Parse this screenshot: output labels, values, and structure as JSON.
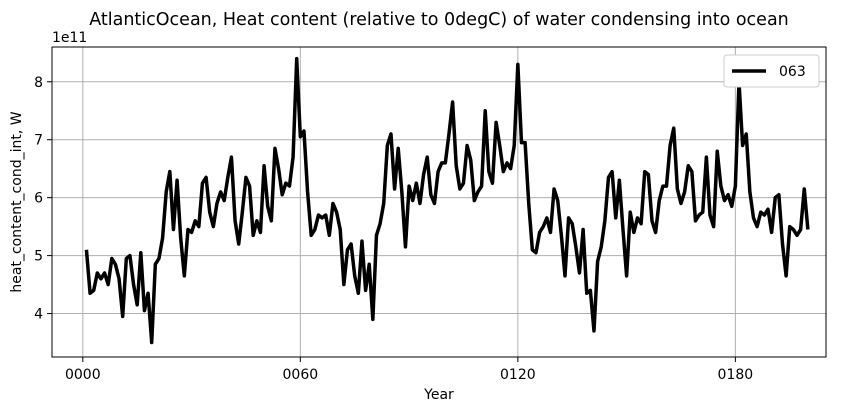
{
  "chart_data": {
    "type": "line",
    "title": "AtlanticOcean, Heat content (relative to 0degC) of water condensing into ocean",
    "xlabel": "Year",
    "ylabel": "heat_content_cond_int, W",
    "y_offset_label": "1e11",
    "x_tick_labels": [
      "0000",
      "0060",
      "0120",
      "0180"
    ],
    "x_ticks": [
      0,
      60,
      120,
      180
    ],
    "y_ticks": [
      4,
      5,
      6,
      7,
      8
    ],
    "y_tick_labels": [
      "4",
      "5",
      "6",
      "7",
      "8"
    ],
    "xlim": [
      -8.5,
      205
    ],
    "ylim": [
      3.25,
      8.6
    ],
    "grid": true,
    "legend_position": "top-right",
    "series": [
      {
        "name": "063",
        "color": "#000000",
        "x": [
          1,
          2,
          3,
          4,
          5,
          6,
          7,
          8,
          9,
          10,
          11,
          12,
          13,
          14,
          15,
          16,
          17,
          18,
          19,
          20,
          21,
          22,
          23,
          24,
          25,
          26,
          27,
          28,
          29,
          30,
          31,
          32,
          33,
          34,
          35,
          36,
          37,
          38,
          39,
          40,
          41,
          42,
          43,
          44,
          45,
          46,
          47,
          48,
          49,
          50,
          51,
          52,
          53,
          54,
          55,
          56,
          57,
          58,
          59,
          60,
          61,
          62,
          63,
          64,
          65,
          66,
          67,
          68,
          69,
          70,
          71,
          72,
          73,
          74,
          75,
          76,
          77,
          78,
          79,
          80,
          81,
          82,
          83,
          84,
          85,
          86,
          87,
          88,
          89,
          90,
          91,
          92,
          93,
          94,
          95,
          96,
          97,
          98,
          99,
          100,
          101,
          102,
          103,
          104,
          105,
          106,
          107,
          108,
          109,
          110,
          111,
          112,
          113,
          114,
          115,
          116,
          117,
          118,
          119,
          120,
          121,
          122,
          123,
          124,
          125,
          126,
          127,
          128,
          129,
          130,
          131,
          132,
          133,
          134,
          135,
          136,
          137,
          138,
          139,
          140,
          141,
          142,
          143,
          144,
          145,
          146,
          147,
          148,
          149,
          150,
          151,
          152,
          153,
          154,
          155,
          156,
          157,
          158,
          159,
          160,
          161,
          162,
          163,
          164,
          165,
          166,
          167,
          168,
          169,
          170,
          171,
          172,
          173,
          174,
          175,
          176,
          177,
          178,
          179,
          180,
          181,
          182,
          183,
          184,
          185,
          186,
          187,
          188,
          189,
          190,
          191,
          192,
          193,
          194,
          195,
          196,
          197,
          198,
          199,
          200
        ],
        "values": [
          5.1,
          4.35,
          4.4,
          4.7,
          4.6,
          4.7,
          4.5,
          4.95,
          4.85,
          4.6,
          3.95,
          4.95,
          5.0,
          4.5,
          4.15,
          5.05,
          4.05,
          4.35,
          3.5,
          4.85,
          4.95,
          5.3,
          6.1,
          6.45,
          5.45,
          6.3,
          5.3,
          4.65,
          5.45,
          5.4,
          5.6,
          5.5,
          6.25,
          6.35,
          5.75,
          5.5,
          5.9,
          6.1,
          5.95,
          6.35,
          6.7,
          5.6,
          5.2,
          5.75,
          6.35,
          6.2,
          5.35,
          5.6,
          5.4,
          6.55,
          5.85,
          5.6,
          6.85,
          6.5,
          6.05,
          6.25,
          6.2,
          6.7,
          8.4,
          7.05,
          7.15,
          6.1,
          5.35,
          5.45,
          5.7,
          5.65,
          5.7,
          5.35,
          5.9,
          5.75,
          5.45,
          4.5,
          5.1,
          5.2,
          4.65,
          4.35,
          5.25,
          4.4,
          4.85,
          3.9,
          5.35,
          5.55,
          5.9,
          6.9,
          7.1,
          6.15,
          6.85,
          6.1,
          5.15,
          6.2,
          5.95,
          6.25,
          5.9,
          6.4,
          6.7,
          6.05,
          5.9,
          6.45,
          6.6,
          6.6,
          7.1,
          7.65,
          6.55,
          6.15,
          6.25,
          6.9,
          6.65,
          5.95,
          6.1,
          6.2,
          7.5,
          6.45,
          6.25,
          7.3,
          6.9,
          6.45,
          6.6,
          6.5,
          6.9,
          8.3,
          6.95,
          6.95,
          5.9,
          5.1,
          5.05,
          5.4,
          5.5,
          5.65,
          5.4,
          6.15,
          5.95,
          5.35,
          4.65,
          5.65,
          5.55,
          5.15,
          4.7,
          5.45,
          4.35,
          4.4,
          3.7,
          4.9,
          5.15,
          5.6,
          6.35,
          6.45,
          5.65,
          6.3,
          5.45,
          4.65,
          5.75,
          5.4,
          5.65,
          5.55,
          6.45,
          6.4,
          5.6,
          5.4,
          5.95,
          6.2,
          6.2,
          6.9,
          7.2,
          6.15,
          5.9,
          6.1,
          6.55,
          6.45,
          5.6,
          5.7,
          5.75,
          6.7,
          5.7,
          5.5,
          6.8,
          6.2,
          5.95,
          6.05,
          5.85,
          6.2,
          8.0,
          6.9,
          7.1,
          6.1,
          5.65,
          5.5,
          5.75,
          5.7,
          5.8,
          5.4,
          6.0,
          6.05,
          5.2,
          4.65,
          5.5,
          5.45,
          5.35,
          5.45,
          6.15,
          5.45
        ]
      }
    ]
  }
}
